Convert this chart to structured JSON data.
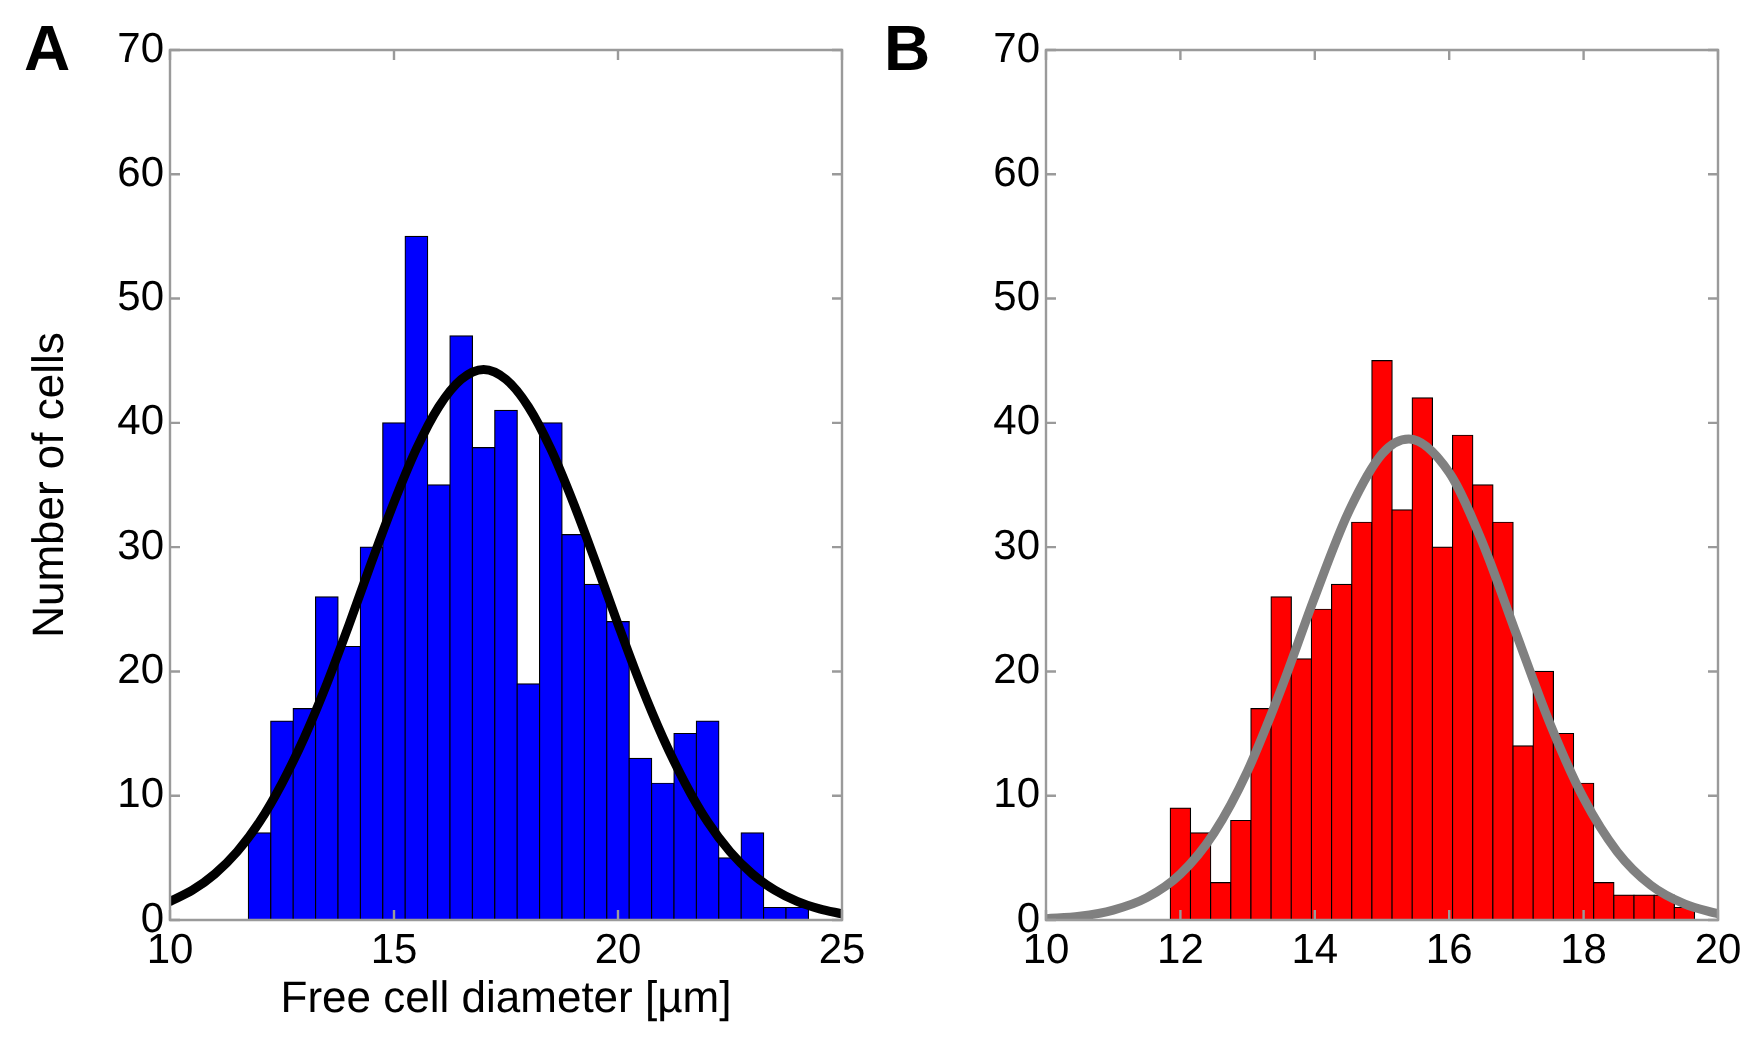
{
  "chart_data": [
    {
      "type": "histogram",
      "title": "A",
      "xlabel": "Free cell diameter [µm]",
      "ylabel": "Number of cells",
      "xlim": [
        10,
        25
      ],
      "xticks": [
        10,
        15,
        20,
        25
      ],
      "ylim": [
        0,
        70
      ],
      "yticks": [
        0,
        10,
        20,
        30,
        40,
        50,
        60,
        70
      ],
      "grid": false,
      "legend": false,
      "series": [
        {
          "type": "histogram",
          "color": "#0000ff",
          "bins": [
            11.75,
            12.25,
            12.75,
            13.25,
            13.75,
            14.25,
            14.75,
            15.25,
            15.75,
            16.25,
            16.75,
            17.25,
            17.75,
            18.25,
            18.75,
            19.25,
            19.75,
            20.25,
            20.75,
            21.25,
            21.75,
            22.25,
            22.75,
            23.25,
            23.75,
            24.25
          ],
          "values": [
            7,
            16,
            17,
            26,
            22,
            30,
            40,
            55,
            35,
            47,
            38,
            41,
            19,
            40,
            31,
            27,
            24,
            13,
            11,
            15,
            16,
            5,
            7,
            1,
            1
          ]
        },
        {
          "type": "line",
          "color": "#000000",
          "x": [
            10,
            10.5,
            11,
            11.5,
            12,
            12.5,
            13,
            13.5,
            14,
            14.5,
            15,
            15.5,
            16,
            16.5,
            17,
            17.5,
            18,
            18.5,
            19,
            19.5,
            20,
            20.5,
            21,
            21.5,
            22,
            22.5,
            23,
            23.5,
            24,
            24.5,
            25
          ],
          "values": [
            1.5,
            2.4,
            3.7,
            5.5,
            7.9,
            11.0,
            14.7,
            19.0,
            23.8,
            28.8,
            33.6,
            37.9,
            41.3,
            43.5,
            44.3,
            43.5,
            41.3,
            37.9,
            33.6,
            28.8,
            23.8,
            19.0,
            14.7,
            11.0,
            7.9,
            5.5,
            3.7,
            2.4,
            1.5,
            0.9,
            0.5
          ]
        }
      ]
    },
    {
      "type": "histogram",
      "title": "B",
      "xlim": [
        10,
        20
      ],
      "xticks": [
        10,
        12,
        14,
        16,
        18,
        20
      ],
      "ylim": [
        0,
        70
      ],
      "yticks": [
        0,
        10,
        20,
        30,
        40,
        50,
        60,
        70
      ],
      "grid": false,
      "legend": false,
      "series": [
        {
          "type": "histogram",
          "color": "#ff0000",
          "bins": [
            11.85,
            12.15,
            12.45,
            12.75,
            13.05,
            13.35,
            13.65,
            13.95,
            14.25,
            14.55,
            14.85,
            15.15,
            15.45,
            15.75,
            16.05,
            16.35,
            16.65,
            16.95,
            17.25,
            17.55,
            17.85,
            18.15,
            18.45,
            18.75,
            19.05,
            19.35,
            19.65
          ],
          "values": [
            9,
            7,
            3,
            8,
            17,
            26,
            21,
            25,
            27,
            32,
            45,
            33,
            42,
            30,
            39,
            35,
            32,
            14,
            20,
            15,
            11,
            3,
            2,
            2,
            2,
            1
          ]
        },
        {
          "type": "line",
          "color": "#808080",
          "x": [
            10,
            10.5,
            11,
            11.5,
            12,
            12.5,
            13,
            13.5,
            14,
            14.5,
            15,
            15.4,
            16,
            16.5,
            17,
            17.5,
            18,
            18.5,
            19,
            19.5,
            20
          ],
          "values": [
            0.1,
            0.3,
            0.8,
            1.8,
            3.7,
            7.0,
            12.0,
            18.6,
            26.0,
            32.8,
            37.5,
            38.7,
            36.0,
            30.3,
            23.0,
            15.8,
            9.8,
            5.5,
            2.8,
            1.3,
            0.5
          ]
        }
      ]
    }
  ]
}
